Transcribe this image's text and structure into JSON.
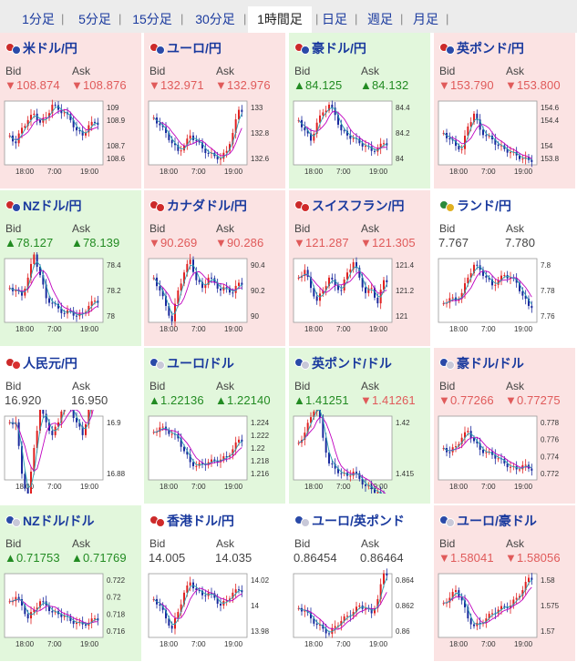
{
  "tabs": [
    "1分足",
    "5分足",
    "15分足",
    "30分足",
    "1時間足",
    "日足",
    "週足",
    "月足"
  ],
  "active_tab": "1時間足",
  "labels": {
    "bid": "Bid",
    "ask": "Ask"
  },
  "colors": {
    "up_bg": "#e2f7dc",
    "down_bg": "#fbe3e3",
    "up_text": "#228b22",
    "down_text": "#e05a5a",
    "candle_up": "#e02020",
    "candle_down": "#1a2a9e",
    "ma1": "#c000c0",
    "ma2": "#2aa0b0"
  },
  "x_ticks": [
    "18:00",
    "7:00",
    "19:00"
  ],
  "pairs": [
    {
      "name": "米ドル/円",
      "bid": "▼108.874",
      "ask": "▼108.876",
      "dir": "down",
      "flags": [
        "#cc2a2a",
        "#2a4aa8"
      ],
      "y_ticks": [
        "109",
        "108.9",
        "108.7",
        "108.6"
      ],
      "series": [
        108.78,
        108.72,
        108.84,
        108.9,
        108.95,
        108.88,
        108.92,
        109.02,
        108.98,
        108.96,
        108.9,
        108.82,
        108.78,
        108.86,
        108.88
      ]
    },
    {
      "name": "ユーロ/円",
      "bid": "▼132.971",
      "ask": "▼132.976",
      "dir": "down",
      "flags": [
        "#cc2a2a",
        "#2a4aa8"
      ],
      "y_ticks": [
        "133",
        "132.8",
        "132.6"
      ],
      "series": [
        132.92,
        132.86,
        132.8,
        132.72,
        132.66,
        132.7,
        132.78,
        132.74,
        132.68,
        132.64,
        132.62,
        132.6,
        132.66,
        132.8,
        132.98
      ]
    },
    {
      "name": "豪ドル/円",
      "bid": "▲84.125",
      "ask": "▲84.132",
      "dir": "up",
      "flags": [
        "#cc2a2a",
        "#2a4aa8"
      ],
      "y_ticks": [
        "84.4",
        "84.2",
        "84"
      ],
      "series": [
        84.3,
        84.22,
        84.14,
        84.28,
        84.36,
        84.42,
        84.34,
        84.22,
        84.18,
        84.16,
        84.12,
        84.1,
        84.06,
        84.08,
        84.12
      ]
    },
    {
      "name": "英ポンド/円",
      "bid": "▼153.790",
      "ask": "▼153.800",
      "dir": "down",
      "flags": [
        "#cc2a2a",
        "#2a4aa8"
      ],
      "y_ticks": [
        "154.6",
        "154.4",
        "154",
        "153.8"
      ],
      "series": [
        154.2,
        154.1,
        154.0,
        153.95,
        154.3,
        154.5,
        154.25,
        154.15,
        154.1,
        154.0,
        153.95,
        153.9,
        153.85,
        153.8,
        153.78
      ]
    },
    {
      "name": "NZドル/円",
      "bid": "▲78.127",
      "ask": "▲78.139",
      "dir": "up",
      "flags": [
        "#cc2a2a",
        "#2a4aa8"
      ],
      "y_ticks": [
        "78.4",
        "78.2",
        "78"
      ],
      "series": [
        78.22,
        78.2,
        78.16,
        78.3,
        78.48,
        78.32,
        78.14,
        78.1,
        78.06,
        78.02,
        78.04,
        78.0,
        78.02,
        78.08,
        78.12
      ]
    },
    {
      "name": "カナダドル/円",
      "bid": "▼90.269",
      "ask": "▼90.286",
      "dir": "down",
      "flags": [
        "#cc2a2a",
        "#d02a2a"
      ],
      "y_ticks": [
        "90.4",
        "90.2",
        "90"
      ],
      "series": [
        90.3,
        90.2,
        90.08,
        89.96,
        90.2,
        90.34,
        90.44,
        90.28,
        90.22,
        90.3,
        90.26,
        90.2,
        90.22,
        90.18,
        90.26
      ]
    },
    {
      "name": "スイスフラン/円",
      "bid": "▼121.287",
      "ask": "▼121.305",
      "dir": "down",
      "flags": [
        "#cc2a2a",
        "#d02a2a"
      ],
      "y_ticks": [
        "121.4",
        "121.2",
        "121"
      ],
      "series": [
        121.3,
        121.36,
        121.22,
        121.12,
        121.2,
        121.3,
        121.24,
        121.2,
        121.34,
        121.42,
        121.3,
        121.18,
        121.22,
        121.1,
        121.28
      ]
    },
    {
      "name": "ランド/円",
      "bid": "7.767",
      "ask": "7.780",
      "dir": "neutral",
      "flags": [
        "#2a8a3a",
        "#e0b020"
      ],
      "y_ticks": [
        "7.8",
        "7.78",
        "7.76"
      ],
      "series": [
        7.77,
        7.774,
        7.772,
        7.778,
        7.79,
        7.8,
        7.796,
        7.79,
        7.784,
        7.788,
        7.792,
        7.79,
        7.786,
        7.776,
        7.768
      ]
    },
    {
      "name": "人民元/円",
      "bid": "16.920",
      "ask": "16.950",
      "dir": "neutral",
      "flags": [
        "#cc2a2a",
        "#d83030"
      ],
      "y_ticks": [
        "16.9",
        "16.88"
      ],
      "series": [
        16.9,
        16.9,
        16.88,
        16.87,
        16.89,
        16.905,
        16.9,
        16.895,
        16.9,
        16.91,
        16.905,
        16.9,
        16.895,
        16.905,
        16.93
      ]
    },
    {
      "name": "ユーロ/ドル",
      "bid": "▲1.22136",
      "ask": "▲1.22140",
      "dir": "up",
      "flags": [
        "#2a4aa8",
        "#c8c8d8"
      ],
      "y_ticks": [
        "1.224",
        "1.222",
        "1.22",
        "1.218",
        "1.216"
      ],
      "series": [
        1.2225,
        1.2232,
        1.2228,
        1.2222,
        1.2215,
        1.2195,
        1.2178,
        1.2172,
        1.2175,
        1.2178,
        1.218,
        1.2182,
        1.2186,
        1.2198,
        1.2213
      ]
    },
    {
      "name": "英ポンド/ドル",
      "bid": "▲1.41251",
      "ask": "▼1.41261",
      "dir": "up",
      "flags": [
        "#2a4aa8",
        "#c8c8d8"
      ],
      "y_ticks": [
        "1.42",
        "1.415"
      ],
      "series": [
        1.418,
        1.419,
        1.4205,
        1.422,
        1.4185,
        1.416,
        1.4155,
        1.415,
        1.4148,
        1.4152,
        1.4145,
        1.4138,
        1.4135,
        1.4132,
        1.4125
      ]
    },
    {
      "name": "豪ドル/ドル",
      "bid": "▼0.77266",
      "ask": "▼0.77275",
      "dir": "down",
      "flags": [
        "#2a4aa8",
        "#c8c8d8"
      ],
      "y_ticks": [
        "0.778",
        "0.776",
        "0.774",
        "0.772"
      ],
      "series": [
        0.775,
        0.7745,
        0.7752,
        0.7762,
        0.777,
        0.7758,
        0.7748,
        0.7745,
        0.7742,
        0.7738,
        0.7732,
        0.7728,
        0.7725,
        0.773,
        0.7726
      ]
    },
    {
      "name": "NZドル/ドル",
      "bid": "▲0.71753",
      "ask": "▲0.71769",
      "dir": "up",
      "flags": [
        "#2a4aa8",
        "#c8c8d8"
      ],
      "y_ticks": [
        "0.722",
        "0.72",
        "0.718",
        "0.716"
      ],
      "series": [
        0.7195,
        0.72,
        0.719,
        0.7175,
        0.7185,
        0.7195,
        0.719,
        0.7182,
        0.718,
        0.7178,
        0.7172,
        0.717,
        0.7168,
        0.717,
        0.7175
      ]
    },
    {
      "name": "香港ドル/円",
      "bid": "14.005",
      "ask": "14.035",
      "dir": "neutral",
      "flags": [
        "#cc2a2a",
        "#d02a2a"
      ],
      "y_ticks": [
        "14.02",
        "14",
        "13.98"
      ],
      "series": [
        14.005,
        14.0,
        13.99,
        13.982,
        13.995,
        14.01,
        14.018,
        14.012,
        14.008,
        14.01,
        14.006,
        14.0,
        14.004,
        14.01,
        14.012
      ]
    },
    {
      "name": "ユーロ/英ポンド",
      "bid": "0.86454",
      "ask": "0.86464",
      "dir": "neutral",
      "flags": [
        "#2a4aa8",
        "#c8c8d8"
      ],
      "y_ticks": [
        "0.864",
        "0.862",
        "0.86"
      ],
      "series": [
        0.8618,
        0.8616,
        0.861,
        0.8605,
        0.8602,
        0.8598,
        0.8604,
        0.8608,
        0.8612,
        0.8615,
        0.862,
        0.8618,
        0.8614,
        0.8625,
        0.8645
      ]
    },
    {
      "name": "ユーロ/豪ドル",
      "bid": "▼1.58041",
      "ask": "▼1.58056",
      "dir": "down",
      "flags": [
        "#2a4aa8",
        "#c8c8d8"
      ],
      "y_ticks": [
        "1.58",
        "1.575",
        "1.57"
      ],
      "series": [
        1.5755,
        1.5765,
        1.578,
        1.576,
        1.5725,
        1.571,
        1.5715,
        1.5725,
        1.5735,
        1.5742,
        1.5748,
        1.575,
        1.5765,
        1.578,
        1.5804
      ]
    }
  ]
}
